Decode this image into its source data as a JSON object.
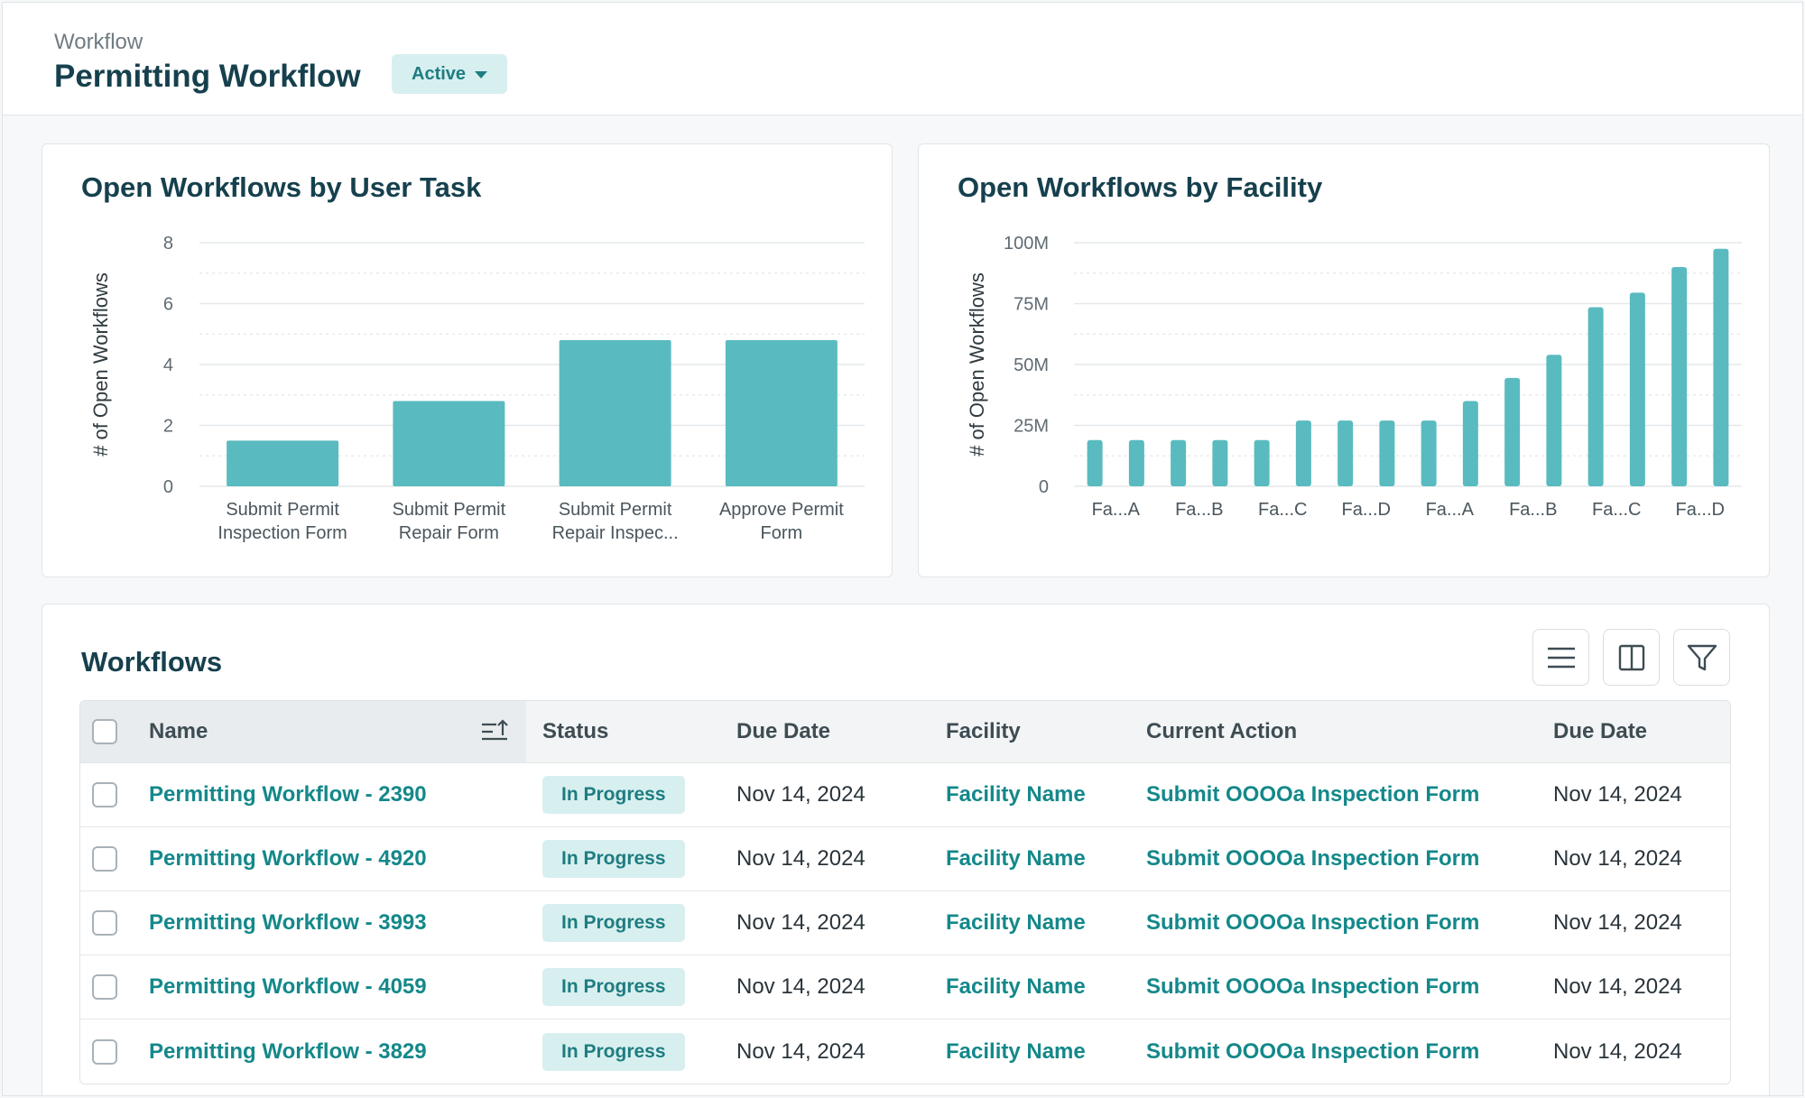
{
  "header": {
    "breadcrumb": "Workflow",
    "title": "Permitting Workflow",
    "status_label": "Active"
  },
  "colors": {
    "accent": "#14888a",
    "bar": "#59bbbf",
    "pill_bg": "#d8eff0",
    "title": "#16404d"
  },
  "chart1": {
    "title": "Open Workflows by User Task"
  },
  "chart2": {
    "title": "Open Workflows by Facility"
  },
  "chart_data": [
    {
      "type": "bar",
      "title": "Open Workflows by User Task",
      "ylabel": "# of Open Workflows",
      "xlabel": "",
      "ylim": [
        0,
        8
      ],
      "yticks": [
        "0",
        "2",
        "4",
        "6",
        "8"
      ],
      "categories": [
        [
          "Submit Permit",
          "Inspection Form"
        ],
        [
          "Submit Permit",
          "Repair Form"
        ],
        [
          "Submit Permit",
          "Repair Inspec..."
        ],
        [
          "Approve Permit",
          "Form"
        ]
      ],
      "values": [
        1.5,
        2.8,
        4.8,
        4.8
      ],
      "grid": true
    },
    {
      "type": "bar",
      "title": "Open Workflows by Facility",
      "ylabel": "# of Open Workflows",
      "xlabel": "",
      "ylim": [
        0,
        100000000
      ],
      "yticks": [
        "0",
        "25M",
        "50M",
        "75M",
        "100M"
      ],
      "categories": [
        "Fa...A",
        "",
        "Fa...B",
        "",
        "Fa...C",
        "",
        "Fa...D",
        "",
        "Fa...A",
        "",
        "Fa...B",
        "",
        "Fa...C",
        "",
        "Fa...D",
        ""
      ],
      "values": [
        19000000,
        19000000,
        19000000,
        19000000,
        19000000,
        27000000,
        27000000,
        27000000,
        27000000,
        35000000,
        44500000,
        54000000,
        73500000,
        79500000,
        90000000,
        97500000
      ],
      "grid": true
    }
  ],
  "table": {
    "title": "Workflows",
    "toolbar_icons": [
      "list-density-icon",
      "columns-icon",
      "filter-icon"
    ],
    "columns": [
      "Name",
      "Status",
      "Due Date",
      "Facility",
      "Current Action",
      "Due Date"
    ],
    "rows": [
      {
        "name": "Permitting Workflow - 2390",
        "status": "In Progress",
        "due": "Nov 14, 2024",
        "facility": "Facility Name",
        "action": "Submit OOOOa Inspection Form",
        "due2": "Nov 14, 2024"
      },
      {
        "name": "Permitting Workflow - 4920",
        "status": "In Progress",
        "due": "Nov 14, 2024",
        "facility": "Facility Name",
        "action": "Submit OOOOa Inspection Form",
        "due2": "Nov 14, 2024"
      },
      {
        "name": "Permitting Workflow - 3993",
        "status": "In Progress",
        "due": "Nov 14, 2024",
        "facility": "Facility Name",
        "action": "Submit OOOOa Inspection Form",
        "due2": "Nov 14, 2024"
      },
      {
        "name": "Permitting Workflow - 4059",
        "status": "In Progress",
        "due": "Nov 14, 2024",
        "facility": "Facility Name",
        "action": "Submit OOOOa Inspection Form",
        "due2": "Nov 14, 2024"
      },
      {
        "name": "Permitting Workflow - 3829",
        "status": "In Progress",
        "due": "Nov 14, 2024",
        "facility": "Facility Name",
        "action": "Submit OOOOa Inspection Form",
        "due2": "Nov 14, 2024"
      }
    ]
  }
}
